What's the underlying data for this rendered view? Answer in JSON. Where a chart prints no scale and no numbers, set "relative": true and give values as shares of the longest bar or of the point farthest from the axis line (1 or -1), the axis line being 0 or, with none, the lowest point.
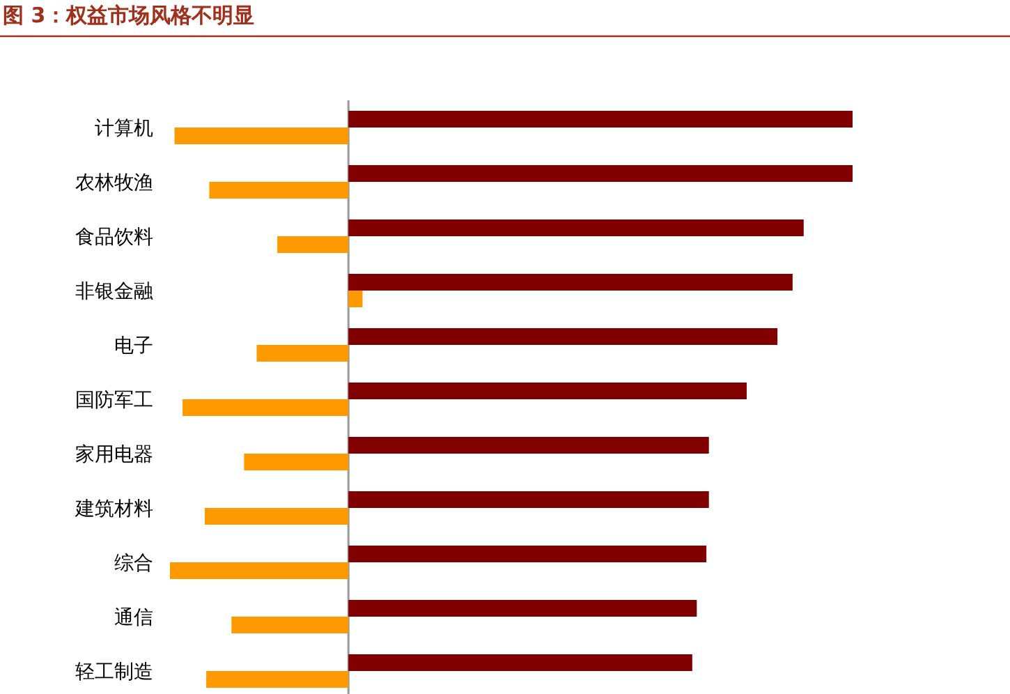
{
  "chart_data": {
    "type": "bar",
    "orientation": "horizontal",
    "relative": true,
    "title": "图 3：权益市场风格不明显",
    "categories": [
      "计算机",
      "农林牧渔",
      "食品饮料",
      "非银金融",
      "电子",
      "国防军工",
      "家用电器",
      "建筑材料",
      "综合",
      "通信",
      "轻工制造"
    ],
    "series": [
      {
        "color": "#800000",
        "values": [
          1,
          1,
          0.903,
          0.881,
          0.851,
          0.79,
          0.715,
          0.715,
          0.71,
          0.691,
          0.682
        ]
      },
      {
        "color": "#ff9900",
        "values": [
          -0.345,
          -0.276,
          -0.141,
          0.028,
          -0.182,
          -0.329,
          -0.207,
          -0.285,
          -0.354,
          -0.232,
          -0.282
        ]
      }
    ]
  }
}
